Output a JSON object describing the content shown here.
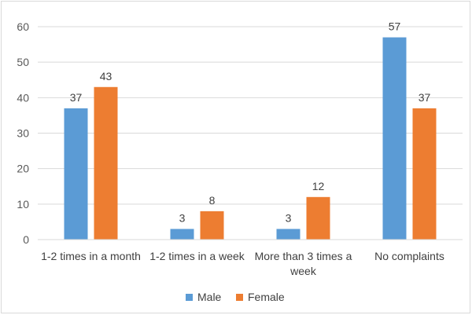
{
  "chart_data": {
    "type": "bar",
    "categories": [
      "1-2 times in a month",
      "1-2 times in a week",
      "More than 3 times a week",
      "No complaints"
    ],
    "category_lines": [
      [
        "1-2 times in a month"
      ],
      [
        "1-2 times in a week"
      ],
      [
        "More than 3 times a",
        "week"
      ],
      [
        "No complaints"
      ]
    ],
    "series": [
      {
        "name": "Male",
        "values": [
          37,
          3,
          3,
          57
        ],
        "color": "#5b9bd5"
      },
      {
        "name": "Female",
        "values": [
          43,
          8,
          12,
          37
        ],
        "color": "#ed7d31"
      }
    ],
    "title": "",
    "xlabel": "",
    "ylabel": "",
    "ylim": [
      0,
      60
    ],
    "yticks": [
      0,
      10,
      20,
      30,
      40,
      50,
      60
    ],
    "grid": true,
    "gridline_color": "#d9d9d9",
    "legend_position": "bottom",
    "data_labels": true
  }
}
